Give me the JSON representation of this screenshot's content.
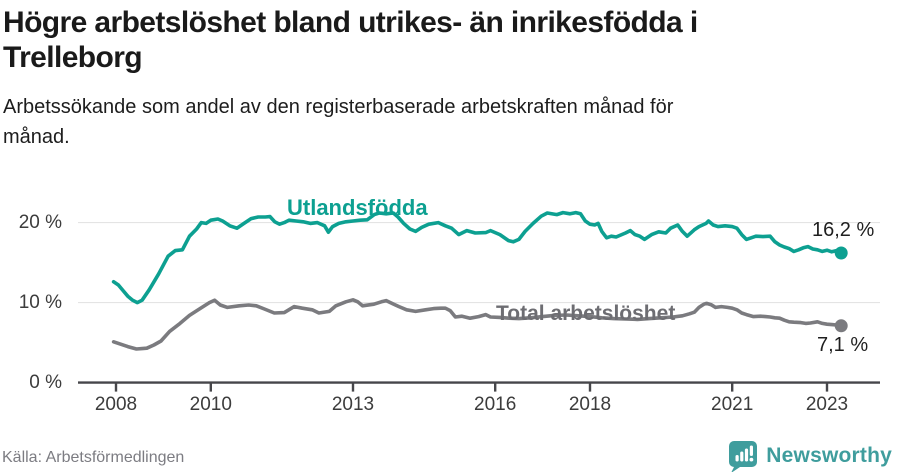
{
  "header": {
    "title": "Högre arbetslöshet bland utrikes- än inrikesfödda i\nTrelleborg",
    "subtitle": "Arbetssökande som andel av den registerbaserade arbetskraften månad för\nmånad."
  },
  "footer": {
    "source": "Källa: Arbetsförmedlingen",
    "brand": "Newsworthy"
  },
  "colors": {
    "utlandsfodda": "#0da091",
    "total": "#7b7b7f",
    "total_label": "#6d6d72",
    "brand_teal": "#3f9d9d",
    "grid": "#e1e1e1",
    "axis": "#46464a"
  },
  "chart_data": {
    "type": "line",
    "title": "Högre arbetslöshet bland utrikes- än inrikesfödda i Trelleborg",
    "xlabel": "",
    "ylabel": "Arbetssökande som andel av den registerbaserade arbetskraften",
    "x_unit": "decimal_year",
    "xlim": [
      2007.9,
      2023.45
    ],
    "ylim": [
      0,
      23
    ],
    "grid": "horizontal",
    "x_ticks": [
      2008,
      2010,
      2013,
      2016,
      2018,
      2021,
      2023
    ],
    "y_ticks": [
      0,
      10,
      20
    ],
    "y_tick_suffix": " %",
    "legend_position": "inline-labels",
    "series": [
      {
        "name": "Utlandsfödda",
        "slug": "utlandsfodda",
        "color": "#0da091",
        "end_label": "16,2 %",
        "end_value": 16.2,
        "points": [
          [
            2007.95,
            12.6
          ],
          [
            2008.05,
            12.2
          ],
          [
            2008.15,
            11.5
          ],
          [
            2008.25,
            10.8
          ],
          [
            2008.35,
            10.3
          ],
          [
            2008.45,
            10.0
          ],
          [
            2008.55,
            10.3
          ],
          [
            2008.7,
            11.6
          ],
          [
            2008.9,
            13.6
          ],
          [
            2009.1,
            15.8
          ],
          [
            2009.25,
            16.5
          ],
          [
            2009.4,
            16.6
          ],
          [
            2009.55,
            18.3
          ],
          [
            2009.7,
            19.2
          ],
          [
            2009.8,
            20.0
          ],
          [
            2009.9,
            19.9
          ],
          [
            2010.0,
            20.3
          ],
          [
            2010.15,
            20.45
          ],
          [
            2010.25,
            20.2
          ],
          [
            2010.4,
            19.6
          ],
          [
            2010.55,
            19.3
          ],
          [
            2010.7,
            19.9
          ],
          [
            2010.85,
            20.5
          ],
          [
            2011.0,
            20.7
          ],
          [
            2011.15,
            20.7
          ],
          [
            2011.25,
            20.75
          ],
          [
            2011.35,
            20.1
          ],
          [
            2011.45,
            19.8
          ],
          [
            2011.55,
            20.0
          ],
          [
            2011.65,
            20.3
          ],
          [
            2011.8,
            20.2
          ],
          [
            2011.95,
            20.1
          ],
          [
            2012.1,
            19.9
          ],
          [
            2012.25,
            20.0
          ],
          [
            2012.4,
            19.6
          ],
          [
            2012.48,
            18.8
          ],
          [
            2012.57,
            19.5
          ],
          [
            2012.7,
            19.9
          ],
          [
            2012.85,
            20.1
          ],
          [
            2013.0,
            20.2
          ],
          [
            2013.15,
            20.3
          ],
          [
            2013.3,
            20.35
          ],
          [
            2013.45,
            21.0
          ],
          [
            2013.55,
            21.2
          ],
          [
            2013.7,
            21.1
          ],
          [
            2013.85,
            21.2
          ],
          [
            2013.95,
            20.7
          ],
          [
            2014.07,
            19.9
          ],
          [
            2014.2,
            19.2
          ],
          [
            2014.32,
            18.9
          ],
          [
            2014.45,
            19.4
          ],
          [
            2014.6,
            19.8
          ],
          [
            2014.8,
            20.0
          ],
          [
            2014.95,
            19.6
          ],
          [
            2015.08,
            19.3
          ],
          [
            2015.23,
            18.5
          ],
          [
            2015.4,
            19.0
          ],
          [
            2015.58,
            18.7
          ],
          [
            2015.8,
            18.75
          ],
          [
            2015.9,
            19.0
          ],
          [
            2016.1,
            18.5
          ],
          [
            2016.28,
            17.75
          ],
          [
            2016.38,
            17.6
          ],
          [
            2016.5,
            17.9
          ],
          [
            2016.63,
            18.9
          ],
          [
            2016.8,
            19.9
          ],
          [
            2016.97,
            20.8
          ],
          [
            2017.1,
            21.2
          ],
          [
            2017.3,
            21.0
          ],
          [
            2017.43,
            21.25
          ],
          [
            2017.58,
            21.1
          ],
          [
            2017.7,
            21.25
          ],
          [
            2017.8,
            21.1
          ],
          [
            2017.9,
            20.2
          ],
          [
            2018.0,
            19.8
          ],
          [
            2018.1,
            19.7
          ],
          [
            2018.17,
            19.9
          ],
          [
            2018.25,
            18.9
          ],
          [
            2018.35,
            18.1
          ],
          [
            2018.45,
            18.3
          ],
          [
            2018.55,
            18.2
          ],
          [
            2018.65,
            18.45
          ],
          [
            2018.75,
            18.7
          ],
          [
            2018.85,
            19.0
          ],
          [
            2018.95,
            18.5
          ],
          [
            2019.05,
            18.3
          ],
          [
            2019.15,
            17.9
          ],
          [
            2019.3,
            18.5
          ],
          [
            2019.45,
            18.85
          ],
          [
            2019.6,
            18.7
          ],
          [
            2019.7,
            19.3
          ],
          [
            2019.85,
            19.7
          ],
          [
            2019.95,
            18.9
          ],
          [
            2020.05,
            18.3
          ],
          [
            2020.2,
            19.1
          ],
          [
            2020.3,
            19.5
          ],
          [
            2020.45,
            19.9
          ],
          [
            2020.5,
            20.2
          ],
          [
            2020.6,
            19.7
          ],
          [
            2020.7,
            19.5
          ],
          [
            2020.85,
            19.6
          ],
          [
            2021.0,
            19.5
          ],
          [
            2021.1,
            19.3
          ],
          [
            2021.2,
            18.5
          ],
          [
            2021.3,
            17.9
          ],
          [
            2021.4,
            18.1
          ],
          [
            2021.5,
            18.3
          ],
          [
            2021.65,
            18.25
          ],
          [
            2021.8,
            18.3
          ],
          [
            2021.9,
            17.6
          ],
          [
            2022.0,
            17.2
          ],
          [
            2022.1,
            16.95
          ],
          [
            2022.2,
            16.75
          ],
          [
            2022.3,
            16.4
          ],
          [
            2022.4,
            16.6
          ],
          [
            2022.5,
            16.85
          ],
          [
            2022.6,
            17.0
          ],
          [
            2022.7,
            16.7
          ],
          [
            2022.8,
            16.6
          ],
          [
            2022.9,
            16.4
          ],
          [
            2023.0,
            16.55
          ],
          [
            2023.1,
            16.35
          ],
          [
            2023.2,
            16.5
          ],
          [
            2023.3,
            16.2
          ]
        ]
      },
      {
        "name": "Total arbetslöshet",
        "slug": "total",
        "color": "#7b7b7f",
        "end_label": "7,1 %",
        "end_value": 7.1,
        "points": [
          [
            2007.95,
            5.1
          ],
          [
            2008.1,
            4.8
          ],
          [
            2008.25,
            4.5
          ],
          [
            2008.43,
            4.2
          ],
          [
            2008.55,
            4.25
          ],
          [
            2008.65,
            4.3
          ],
          [
            2008.8,
            4.7
          ],
          [
            2008.95,
            5.2
          ],
          [
            2009.13,
            6.4
          ],
          [
            2009.35,
            7.4
          ],
          [
            2009.55,
            8.4
          ],
          [
            2009.76,
            9.2
          ],
          [
            2009.97,
            10.0
          ],
          [
            2010.08,
            10.3
          ],
          [
            2010.2,
            9.7
          ],
          [
            2010.35,
            9.4
          ],
          [
            2010.6,
            9.6
          ],
          [
            2010.8,
            9.7
          ],
          [
            2010.96,
            9.6
          ],
          [
            2011.13,
            9.2
          ],
          [
            2011.34,
            8.7
          ],
          [
            2011.55,
            8.75
          ],
          [
            2011.76,
            9.5
          ],
          [
            2011.93,
            9.3
          ],
          [
            2012.14,
            9.1
          ],
          [
            2012.28,
            8.7
          ],
          [
            2012.5,
            8.9
          ],
          [
            2012.64,
            9.6
          ],
          [
            2012.85,
            10.1
          ],
          [
            2013.0,
            10.35
          ],
          [
            2013.1,
            10.1
          ],
          [
            2013.2,
            9.6
          ],
          [
            2013.44,
            9.8
          ],
          [
            2013.6,
            10.1
          ],
          [
            2013.7,
            10.25
          ],
          [
            2013.86,
            9.8
          ],
          [
            2013.97,
            9.5
          ],
          [
            2014.13,
            9.1
          ],
          [
            2014.32,
            8.9
          ],
          [
            2014.53,
            9.1
          ],
          [
            2014.7,
            9.25
          ],
          [
            2014.85,
            9.3
          ],
          [
            2014.95,
            9.3
          ],
          [
            2015.05,
            9.0
          ],
          [
            2015.16,
            8.2
          ],
          [
            2015.3,
            8.3
          ],
          [
            2015.47,
            8.05
          ],
          [
            2015.65,
            8.25
          ],
          [
            2015.8,
            8.5
          ],
          [
            2015.9,
            8.2
          ],
          [
            2016.1,
            8.15
          ],
          [
            2016.3,
            8.05
          ],
          [
            2016.5,
            8.0
          ],
          [
            2016.75,
            8.1
          ],
          [
            2017.0,
            8.25
          ],
          [
            2017.25,
            8.4
          ],
          [
            2017.5,
            8.45
          ],
          [
            2017.75,
            8.35
          ],
          [
            2018.0,
            8.25
          ],
          [
            2018.25,
            8.1
          ],
          [
            2018.5,
            8.0
          ],
          [
            2018.75,
            7.95
          ],
          [
            2019.0,
            7.9
          ],
          [
            2019.25,
            8.0
          ],
          [
            2019.5,
            8.1
          ],
          [
            2019.75,
            8.2
          ],
          [
            2019.95,
            8.35
          ],
          [
            2020.1,
            8.6
          ],
          [
            2020.2,
            8.8
          ],
          [
            2020.3,
            9.4
          ],
          [
            2020.4,
            9.8
          ],
          [
            2020.46,
            9.9
          ],
          [
            2020.55,
            9.75
          ],
          [
            2020.65,
            9.4
          ],
          [
            2020.77,
            9.5
          ],
          [
            2020.9,
            9.4
          ],
          [
            2021.0,
            9.3
          ],
          [
            2021.1,
            9.1
          ],
          [
            2021.2,
            8.7
          ],
          [
            2021.3,
            8.5
          ],
          [
            2021.45,
            8.25
          ],
          [
            2021.6,
            8.3
          ],
          [
            2021.7,
            8.25
          ],
          [
            2021.8,
            8.2
          ],
          [
            2021.9,
            8.1
          ],
          [
            2022.0,
            8.05
          ],
          [
            2022.1,
            7.8
          ],
          [
            2022.2,
            7.6
          ],
          [
            2022.3,
            7.55
          ],
          [
            2022.45,
            7.5
          ],
          [
            2022.55,
            7.4
          ],
          [
            2022.65,
            7.45
          ],
          [
            2022.8,
            7.6
          ],
          [
            2022.9,
            7.4
          ],
          [
            2023.0,
            7.3
          ],
          [
            2023.1,
            7.25
          ],
          [
            2023.2,
            7.2
          ],
          [
            2023.3,
            7.1
          ]
        ]
      }
    ]
  }
}
